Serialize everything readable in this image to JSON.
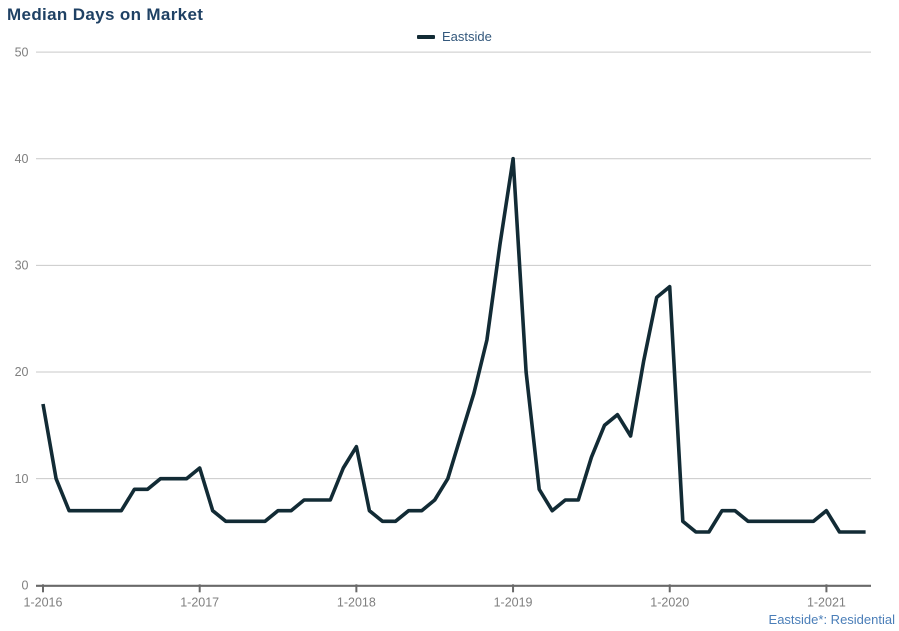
{
  "title": "Median Days on Market",
  "legend": {
    "label": "Eastside"
  },
  "footer": {
    "note": "Eastside*: Residential"
  },
  "colors": {
    "title_text": "#1f4164",
    "legend_text": "#33587c",
    "footer_text": "#4a7eb8",
    "line": "#122b35",
    "gridline": "#c9c9c9",
    "axis_line": "#696969",
    "tick_label": "#7f7f7f"
  },
  "chart_data": {
    "type": "line",
    "title": "Median Days on Market",
    "xlabel": "",
    "ylabel": "",
    "grid": "horizontal",
    "legend_position": "top-center",
    "ylim": [
      0,
      50
    ],
    "y_ticks": [
      0,
      10,
      20,
      30,
      40,
      50
    ],
    "x_tick_labels": [
      "1-2016",
      "1-2017",
      "1-2018",
      "1-2019",
      "1-2020",
      "1-2021"
    ],
    "x": [
      "1-2016",
      "2-2016",
      "3-2016",
      "4-2016",
      "5-2016",
      "6-2016",
      "7-2016",
      "8-2016",
      "9-2016",
      "10-2016",
      "11-2016",
      "12-2016",
      "1-2017",
      "2-2017",
      "3-2017",
      "4-2017",
      "5-2017",
      "6-2017",
      "7-2017",
      "8-2017",
      "9-2017",
      "10-2017",
      "11-2017",
      "12-2017",
      "1-2018",
      "2-2018",
      "3-2018",
      "4-2018",
      "5-2018",
      "6-2018",
      "7-2018",
      "8-2018",
      "9-2018",
      "10-2018",
      "11-2018",
      "12-2018",
      "1-2019",
      "2-2019",
      "3-2019",
      "4-2019",
      "5-2019",
      "6-2019",
      "7-2019",
      "8-2019",
      "9-2019",
      "10-2019",
      "11-2019",
      "12-2019",
      "1-2020",
      "2-2020",
      "3-2020",
      "4-2020",
      "5-2020",
      "6-2020",
      "7-2020",
      "8-2020",
      "9-2020",
      "10-2020",
      "11-2020",
      "12-2020",
      "1-2021",
      "2-2021",
      "3-2021",
      "4-2021"
    ],
    "series": [
      {
        "name": "Eastside",
        "values": [
          17,
          10,
          7,
          7,
          7,
          7,
          7,
          9,
          9,
          10,
          10,
          10,
          11,
          7,
          6,
          6,
          6,
          6,
          7,
          7,
          8,
          8,
          8,
          11,
          13,
          7,
          6,
          6,
          7,
          7,
          8,
          10,
          14,
          18,
          23,
          32,
          40,
          20,
          9,
          7,
          8,
          8,
          12,
          15,
          16,
          14,
          21,
          27,
          28,
          6,
          5,
          5,
          7,
          7,
          6,
          6,
          6,
          6,
          6,
          6,
          7,
          5,
          5,
          5
        ]
      }
    ]
  }
}
